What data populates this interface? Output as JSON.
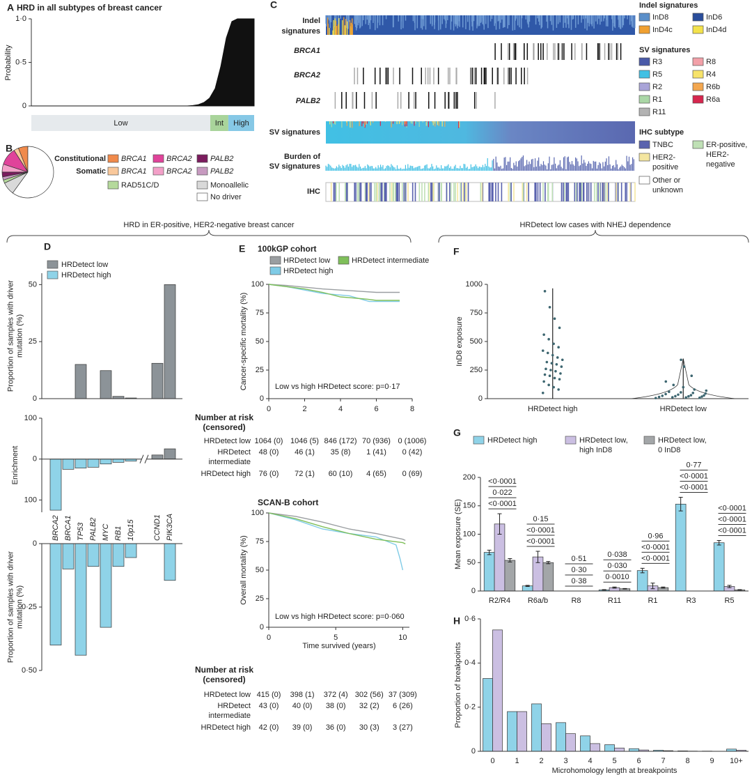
{
  "headers": [
    "HRD in ER-positive, HER2-negative breast cancer",
    "HRDetect low cases with NHEJ dependence"
  ],
  "chart_data": [
    {
      "type": "area",
      "panel": "A",
      "title": "HRD in all subtypes of breast cancer",
      "y_label": "Probability",
      "color": "#111111",
      "ylim": [
        0,
        1
      ],
      "yticks": [
        0,
        {
          "value": 0.5,
          "label": "0·5"
        },
        {
          "value": 1,
          "label": "1·0"
        }
      ],
      "values": [
        0,
        0,
        0,
        0,
        0,
        0,
        0,
        0,
        0,
        0,
        0,
        0,
        0,
        0,
        0,
        0,
        0,
        0,
        0,
        0,
        0,
        0,
        0,
        0,
        0,
        0,
        0,
        0,
        0,
        0.005,
        0.015,
        0.04,
        0.09,
        0.2,
        0.45,
        0.78,
        0.97,
        1,
        1,
        1,
        1
      ],
      "bands": {
        "categories": [
          "Low",
          "Int",
          "High"
        ],
        "values": [
          80.3,
          8.1,
          11.6
        ],
        "colors": [
          "#e6eaed",
          "#a9d49b",
          "#86c8e6"
        ]
      }
    },
    {
      "type": "pie",
      "panel": "B",
      "groups": [
        "Constitutional",
        "Somatic"
      ],
      "categories": [
        "BRCA1",
        "BRCA1",
        "BRCA2",
        "BRCA2",
        "PALB2",
        "PALB2",
        "RAD51C/D",
        "Monoallelic",
        "No driver"
      ],
      "values": [
        6,
        3,
        11,
        5,
        3,
        2,
        2,
        8,
        60
      ],
      "colors": [
        "#f08a4b",
        "#f9c89b",
        "#e0439a",
        "#f3a0c8",
        "#7b1c5e",
        "#c79ac0",
        "#b5d99c",
        "#d9d9d9",
        "#ffffff"
      ]
    },
    {
      "type": "heatmap",
      "panel": "C",
      "tracks": [
        [
          "Indel",
          "signatures"
        ],
        [
          "BRCA1"
        ],
        [
          "BRCA2"
        ],
        [
          "PALB2"
        ],
        [
          "SV signatures"
        ],
        [
          "Burden of",
          "SV signatures"
        ],
        [
          "IHC"
        ]
      ],
      "legends": [
        {
          "title": "Indel signatures",
          "categories": [
            "InD8",
            "InD6",
            "InD4c",
            "InD4d"
          ],
          "colors": [
            "#5b8fc9",
            "#2a4d9b",
            "#f0a030",
            "#f3e24b"
          ]
        },
        {
          "title": "SV signatures",
          "categories": [
            "R3",
            "R8",
            "R5",
            "R4",
            "R2",
            "R6b",
            "R1",
            "R6a",
            "R11"
          ],
          "colors": [
            "#4a5aa8",
            "#f2a0a8",
            "#41c0e4",
            "#f7e36a",
            "#a9a4d8",
            "#f3a74f",
            "#aad7a6",
            "#d7264e",
            "#b3b3b3"
          ]
        },
        {
          "title": "IHC subtype",
          "categories": [
            [
              "TNBC"
            ],
            [
              "ER-positive,",
              "HER2-",
              "negative"
            ],
            [
              "HER2-",
              "positive"
            ],
            [
              "Other or",
              "unknown"
            ]
          ],
          "colors": [
            "#5a63ae",
            "#bfe0b5",
            "#f4e6a0",
            "#ffffff"
          ]
        }
      ]
    },
    {
      "type": "bar",
      "panel": "D",
      "y_label": [
        "Proportion of samples with driver",
        "mutation (%)"
      ],
      "ylim": [
        0,
        55
      ],
      "yticks": [
        0,
        25,
        50
      ],
      "series": [
        {
          "name": "HRDetect low",
          "color": "#8c9398",
          "values": [
            0,
            0,
            15,
            0,
            12.3,
            1,
            0.3,
            15.5,
            50
          ]
        }
      ]
    },
    {
      "type": "bar",
      "y_label": "Enrichment",
      "ylim": [
        -130,
        100
      ],
      "yticks": [
        100,
        0,
        {
          "value": -100,
          "label": "100"
        }
      ],
      "values": [
        -125,
        -25,
        -22,
        -20,
        -12,
        -8,
        -5,
        10,
        25
      ],
      "colors": [
        "#8fd3e8",
        "#8fd3e8",
        "#8fd3e8",
        "#8fd3e8",
        "#8fd3e8",
        "#8fd3e8",
        "#8fd3e8",
        "#8c9398",
        "#8c9398"
      ]
    },
    {
      "type": "bar",
      "y_label": [
        "Proportion of samples with driver",
        "mutation (%)"
      ],
      "inverted": true,
      "ylim": [
        0,
        0.5
      ],
      "yticks": [
        0,
        {
          "value": 0.25,
          "label": "0·25"
        },
        {
          "value": 0.5,
          "label": "0·50"
        }
      ],
      "categories": [
        "BRCA2",
        "BRCA1",
        "TP53",
        "PALB2",
        "MYC",
        "RB1",
        "10p15",
        "CCND1",
        "PIK3CA"
      ],
      "series": [
        {
          "name": "HRDetect high",
          "color": "#8fd3e8",
          "values": [
            0.4,
            0.1,
            0.44,
            0.09,
            0.33,
            0.09,
            0.055,
            0,
            0.145
          ]
        }
      ]
    },
    {
      "type": "line",
      "panel": "E",
      "title": "100kGP cohort",
      "y_label": "Cancer-specific mortality (%)",
      "annotation": "Low vs high HRDetect score: p=0·17",
      "xlim": [
        0,
        8
      ],
      "xticks": [
        0,
        2,
        4,
        6,
        8
      ],
      "ylim": [
        0,
        100
      ],
      "yticks": [
        0,
        25,
        50,
        75,
        100
      ],
      "series": [
        {
          "name": "HRDetect low",
          "color": "#9a9ea1",
          "x": [
            0,
            1,
            2,
            3,
            4,
            5,
            6,
            7.3
          ],
          "values": [
            100,
            99,
            97.5,
            96,
            95,
            94,
            93,
            93
          ]
        },
        {
          "name": "HRDetect high",
          "color": "#7fcbe6",
          "x": [
            0,
            1,
            2,
            3,
            4.5,
            5.6,
            7.3
          ],
          "values": [
            100,
            98,
            95,
            92,
            90,
            85,
            85
          ]
        },
        {
          "name": "HRDetect intermediate",
          "color": "#7fbf5a",
          "x": [
            0,
            2,
            3,
            4,
            5.5,
            6,
            7.3
          ],
          "values": [
            100,
            96,
            93,
            89,
            87,
            86,
            86
          ]
        }
      ],
      "risk_table": {
        "title": [
          "Number at risk",
          "(censored)"
        ],
        "rows": [
          {
            "label": [
              "HRDetect low"
            ],
            "cells": [
              "1064 (0)",
              "1046 (5)",
              "846 (172)",
              "70 (936)",
              "0 (1006)"
            ]
          },
          {
            "label": [
              "HRDetect",
              "intermediate"
            ],
            "cells": [
              "48 (0)",
              "46 (1)",
              "35 (8)",
              "1 (41)",
              "0 (42)"
            ]
          },
          {
            "label": [
              "HRDetect high"
            ],
            "cells": [
              "76 (0)",
              "72 (1)",
              "60 (10)",
              "4 (65)",
              "0 (69)"
            ]
          }
        ]
      }
    },
    {
      "type": "line",
      "title": "SCAN-B cohort",
      "y_label": "Overall mortality (%)",
      "x_label": "Time survived (years)",
      "annotation": "Low vs high HRDetect score: p=0·060",
      "xlim": [
        0,
        10.5
      ],
      "xticks": [
        0,
        5,
        10
      ],
      "ylim": [
        0,
        100
      ],
      "yticks": [
        0,
        25,
        50,
        75,
        100
      ],
      "series": [
        {
          "color": "#9a9ea1",
          "x": [
            0,
            2,
            4,
            6,
            8,
            10,
            10.2
          ],
          "values": [
            100,
            97,
            92,
            86,
            82,
            77,
            76
          ]
        },
        {
          "color": "#7fcbe6",
          "x": [
            0,
            2,
            4,
            6,
            8,
            9.5,
            9.8,
            10
          ],
          "values": [
            100,
            94,
            86,
            82,
            79,
            72,
            60,
            50
          ]
        },
        {
          "color": "#7fbf5a",
          "x": [
            0,
            2,
            4,
            6,
            8,
            10,
            10.2
          ],
          "values": [
            100,
            95,
            88,
            82,
            77,
            74,
            73
          ]
        }
      ],
      "risk_table": {
        "title": [
          "Number at risk",
          "(censored)"
        ],
        "rows": [
          {
            "label": [
              "HRDetect low"
            ],
            "cells": [
              "415 (0)",
              "398 (1)",
              "372 (4)",
              "302 (56)",
              "37 (309)"
            ]
          },
          {
            "label": [
              "HRDetect",
              "intermediate"
            ],
            "cells": [
              "43 (0)",
              "40 (0)",
              "38 (0)",
              "32 (2)",
              "6 (26)"
            ]
          },
          {
            "label": [
              "HRDetect high"
            ],
            "cells": [
              "42 (0)",
              "39 (0)",
              "36 (0)",
              "30 (3)",
              "3 (27)"
            ]
          }
        ]
      }
    },
    {
      "type": "strip",
      "panel": "F",
      "y_label": "InD8 exposure",
      "color": "#3d6670",
      "ylim": [
        0,
        1000
      ],
      "yticks": [
        0,
        250,
        500,
        750,
        1000
      ],
      "categories": [
        "HRDetect high",
        "HRDetect low"
      ],
      "max": [
        965,
        350
      ],
      "values": [
        [
          50,
          80,
          100,
          120,
          150,
          170,
          180,
          200,
          210,
          220,
          240,
          250,
          260,
          280,
          300,
          310,
          320,
          340,
          360,
          380,
          400,
          420,
          450,
          480,
          520,
          560,
          620,
          700,
          800,
          940
        ],
        [
          5,
          8,
          10,
          12,
          15,
          18,
          20,
          22,
          25,
          28,
          30,
          35,
          40,
          45,
          50,
          55,
          60,
          70,
          80,
          100,
          120,
          150,
          200,
          280,
          340
        ]
      ]
    },
    {
      "type": "bar",
      "panel": "G",
      "y_label": "Mean exposure (SE)",
      "ylim": [
        0,
        200
      ],
      "yticks": [
        0,
        50,
        100,
        150,
        200
      ],
      "categories": [
        "R2/R4",
        "R6a/b",
        "R8",
        "R11",
        "R1",
        "R3",
        "R5"
      ],
      "series": [
        {
          "name": [
            "HRDetect high"
          ],
          "color": "#8fd3e8",
          "values": [
            68,
            9,
            0,
            2,
            36,
            153,
            85
          ],
          "errors": [
            4,
            1,
            0,
            0.5,
            4,
            12,
            4
          ]
        },
        {
          "name": [
            "HRDetect low,",
            "high InD8"
          ],
          "color": "#cbbfe2",
          "values": [
            118,
            60,
            0,
            6,
            9,
            0,
            8
          ],
          "errors": [
            18,
            10,
            0,
            1,
            5,
            0,
            2
          ]
        },
        {
          "name": [
            "HRDetect low,",
            "0 InD8"
          ],
          "color": "#a3a6a8",
          "values": [
            54,
            50,
            0,
            4,
            6,
            0,
            2
          ],
          "errors": [
            3,
            2,
            0,
            0.5,
            1,
            0,
            0.5
          ]
        }
      ],
      "p_values": [
        [
          "<0·0001",
          "0·022",
          "<0·0001"
        ],
        [
          "0·15",
          "<0·0001",
          "<0·0001"
        ],
        [
          "0·51",
          "0·30",
          "0·38"
        ],
        [
          "0·038",
          "0·030",
          "0·0010"
        ],
        [
          "0·96",
          "<0·0001",
          "<0·0001"
        ],
        [
          "0·77",
          "<0·0001",
          "<0·0001"
        ],
        [
          "<0·0001",
          "<0·0001",
          "<0·0001"
        ]
      ]
    },
    {
      "type": "bar",
      "panel": "H",
      "y_label": "Proportion of breakpoints",
      "x_label": "Microhomology length at breakpoints",
      "ylim": [
        0,
        0.6
      ],
      "yticks": [
        0,
        {
          "value": 0.2,
          "label": "0·2"
        },
        {
          "value": 0.4,
          "label": "0·4"
        },
        {
          "value": 0.6,
          "label": "0·6"
        }
      ],
      "categories": [
        "0",
        "1",
        "2",
        "3",
        "4",
        "5",
        "6",
        "7",
        "8",
        "9",
        "10+"
      ],
      "series": [
        {
          "color": "#8fd3e8",
          "values": [
            0.33,
            0.18,
            0.215,
            0.13,
            0.07,
            0.03,
            0.012,
            0.005,
            0.002,
            0.001,
            0.01
          ]
        },
        {
          "color": "#cbbfe2",
          "values": [
            0.55,
            0.18,
            0.125,
            0.08,
            0.035,
            0.015,
            0.006,
            0.003,
            0.001,
            0,
            0.005
          ]
        }
      ]
    }
  ]
}
